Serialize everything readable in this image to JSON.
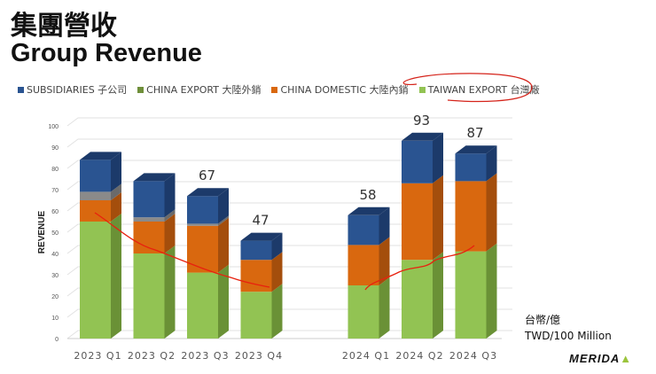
{
  "title_zh": "集團營收",
  "title_en": "Group Revenue",
  "unit_zh": "台幣/億",
  "unit_en": "TWD/100 Million",
  "logo": "MERIDA",
  "chart_data": {
    "type": "bar",
    "stacked": true,
    "three_d": true,
    "title": "Group Revenue",
    "ylabel": "REVENUE",
    "xlabel": "",
    "ylim": [
      0,
      100
    ],
    "yticks": [
      0,
      10,
      20,
      30,
      40,
      50,
      60,
      70,
      80,
      90,
      100
    ],
    "categories": [
      "2023 Q1",
      "2023 Q2",
      "2023 Q3",
      "2023 Q4",
      "2024 Q1",
      "2024 Q2",
      "2024 Q3"
    ],
    "series": [
      {
        "name": "TAIWAN EXPORT 台灣廠",
        "color": "#92c353",
        "side": "#6a9136",
        "values": [
          55,
          40,
          31,
          22,
          25,
          37,
          41
        ]
      },
      {
        "name": "CHINA DOMESTIC 大陸內銷",
        "color": "#d9680f",
        "side": "#a44e0c",
        "values": [
          10,
          15,
          22,
          15,
          19,
          36,
          33
        ]
      },
      {
        "name": "CHINA EXPORT 大陸外銷",
        "color": "#8a8a8a",
        "side": "#6a6a6a",
        "legend_color": "#6f8f3a",
        "values": [
          4,
          2,
          1,
          0,
          0,
          0,
          0
        ]
      },
      {
        "name": "SUBSIDIARIES 子公司",
        "color": "#2a5491",
        "side": "#1c3a6a",
        "values": [
          15,
          17,
          13,
          9,
          14,
          20,
          13
        ]
      }
    ],
    "legend_order": [
      "SUBSIDIARIES 子公司",
      "CHINA EXPORT 大陸外銷",
      "CHINA DOMESTIC 大陸內銷",
      "TAIWAN EXPORT 台灣廠"
    ],
    "total_labels": [
      null,
      null,
      "67",
      "47",
      "58",
      "93",
      "87"
    ],
    "legend_placement": "top",
    "grid": true
  }
}
